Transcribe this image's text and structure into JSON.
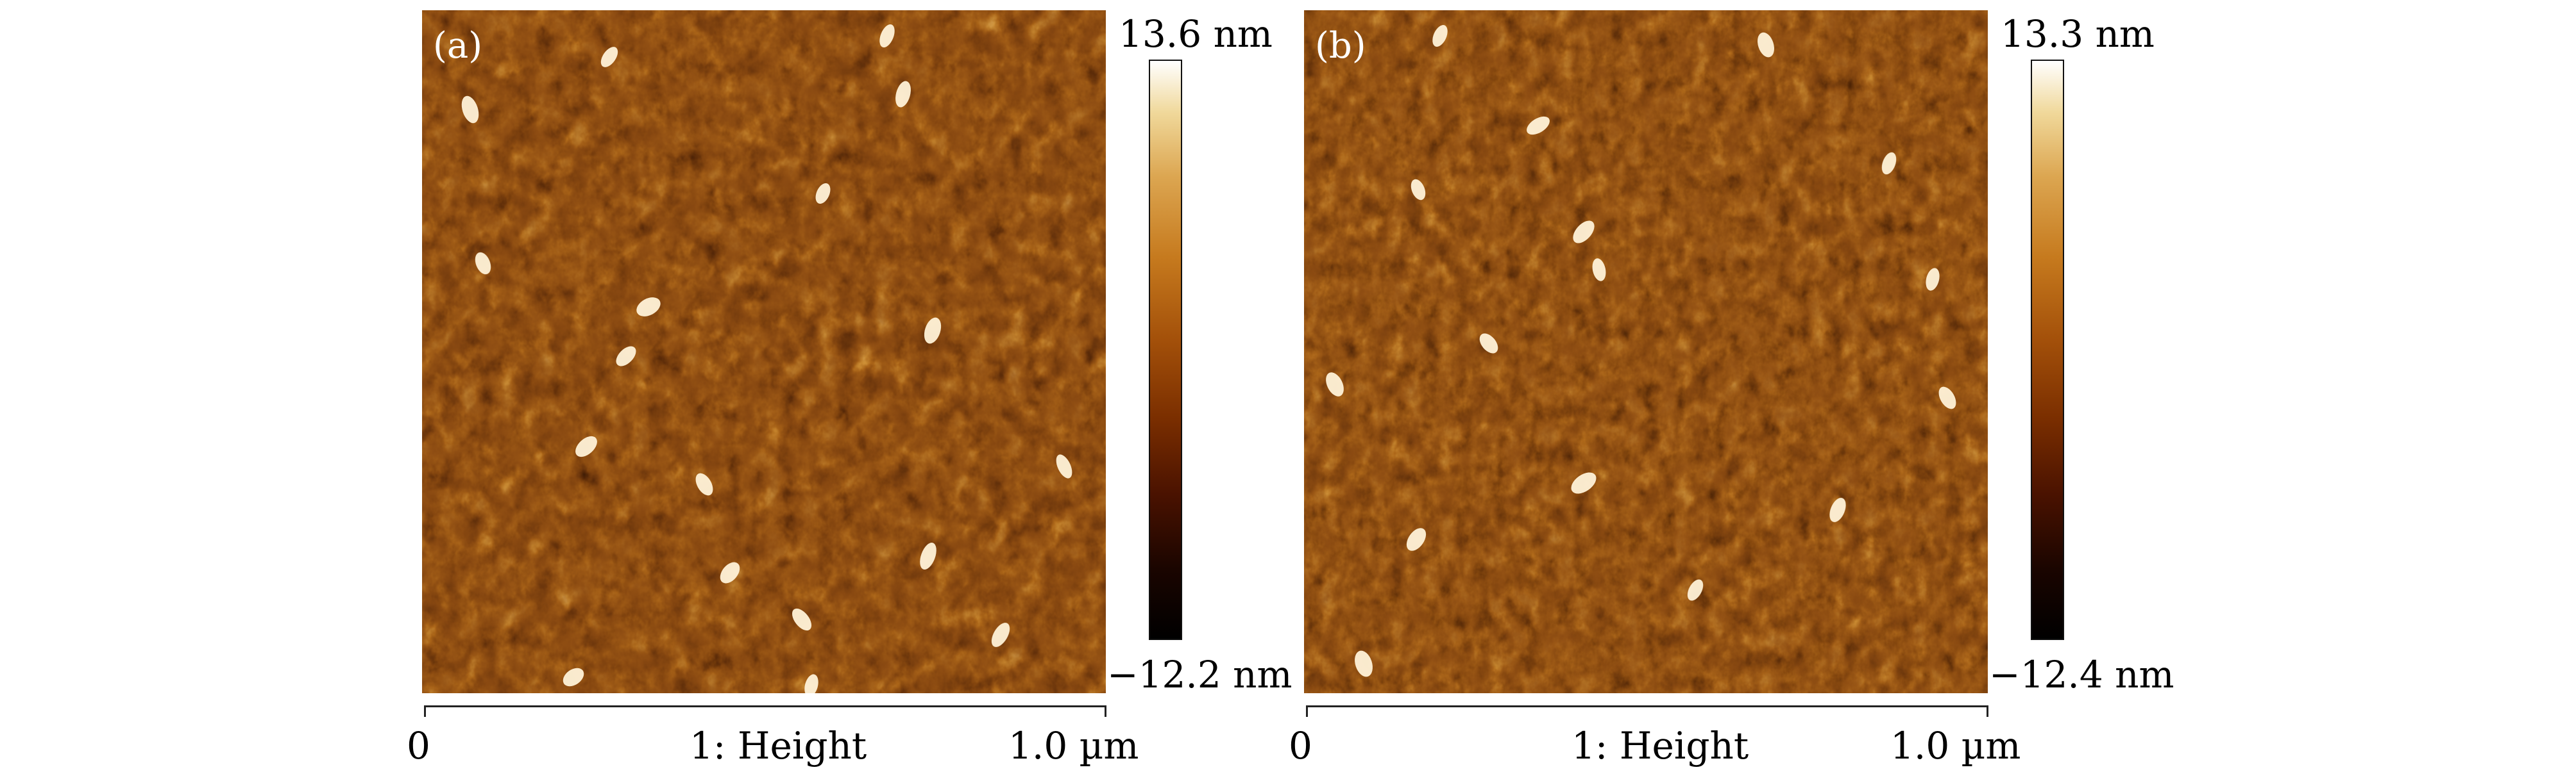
{
  "panels": [
    {
      "label": "(a)",
      "colorbar": {
        "max_label": "13.6 nm",
        "min_label": "−12.2 nm"
      },
      "scale": {
        "start_label": "0",
        "channel_label": "1: Height",
        "end_label": "1.0 µm"
      }
    },
    {
      "label": "(b)",
      "colorbar": {
        "max_label": "13.3 nm",
        "min_label": "−12.4 nm"
      },
      "scale": {
        "start_label": "0",
        "channel_label": "1: Height",
        "end_label": "1.0 µm"
      }
    }
  ],
  "colors": {
    "surface_base": "#8b4a12",
    "surface_dark": "#2a0c02",
    "surface_mid": "#b86a1c",
    "surface_light": "#dca651",
    "surface_peak": "#fff3d8",
    "label_text": "#ffffff"
  }
}
